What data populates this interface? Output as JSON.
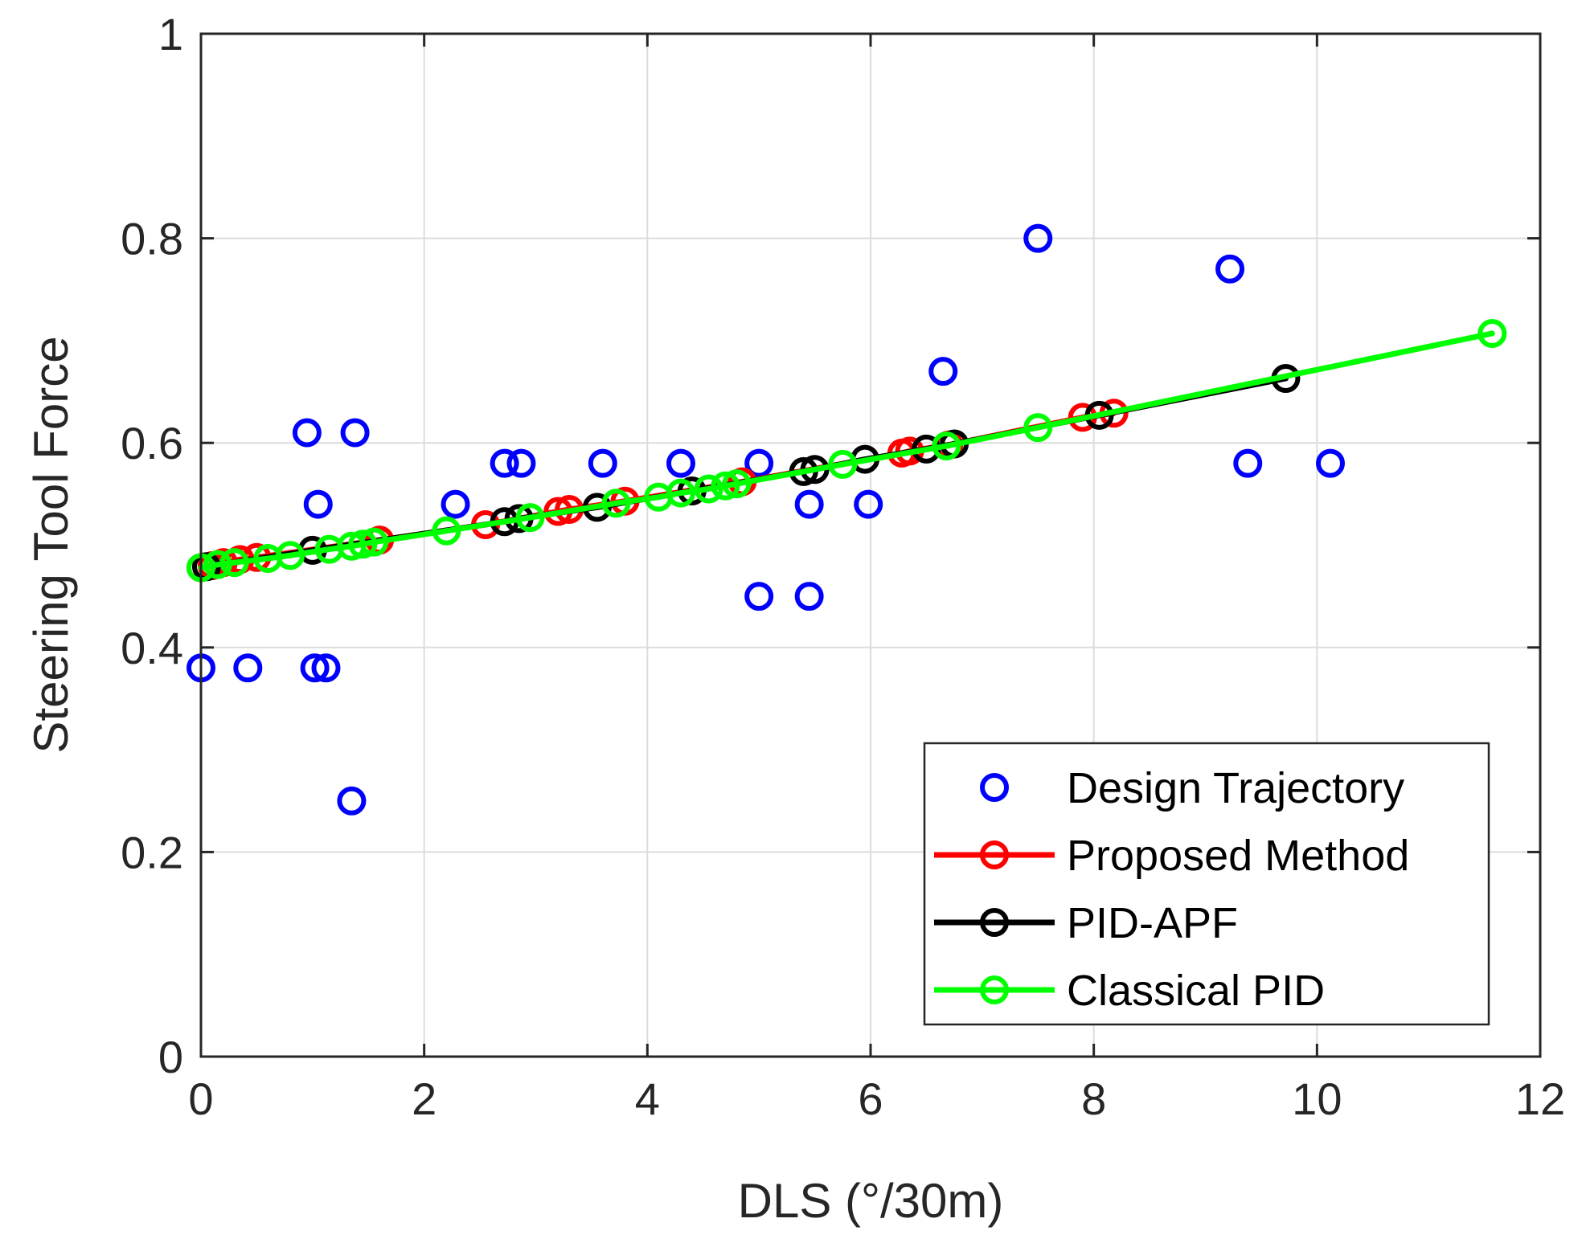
{
  "chart_data": {
    "type": "scatter",
    "title": "",
    "xlabel": "DLS (°/30m)",
    "ylabel": "Steering Tool Force",
    "xlim": [
      0,
      12
    ],
    "ylim": [
      0,
      1
    ],
    "xticks": [
      0,
      2,
      4,
      6,
      8,
      10,
      12
    ],
    "yticks": [
      0,
      0.2,
      0.4,
      0.6,
      0.8,
      1
    ],
    "xtick_labels": [
      "0",
      "2",
      "4",
      "6",
      "8",
      "10",
      "12"
    ],
    "ytick_labels": [
      "0",
      "0.2",
      "0.4",
      "0.6",
      "0.8",
      "1"
    ],
    "grid": true,
    "legend_position": "bottom-right",
    "series": [
      {
        "name": "Design Trajectory",
        "mode": "markers",
        "color": "#0000ff",
        "x": [
          0.0,
          0.42,
          0.95,
          1.05,
          1.38,
          1.02,
          1.12,
          1.35,
          2.28,
          2.72,
          2.87,
          3.6,
          4.3,
          5.0,
          5.45,
          5.98,
          5.0,
          5.45,
          6.65,
          7.5,
          9.22,
          9.38,
          10.12
        ],
        "y": [
          0.38,
          0.38,
          0.61,
          0.54,
          0.61,
          0.38,
          0.38,
          0.25,
          0.54,
          0.58,
          0.58,
          0.58,
          0.58,
          0.58,
          0.54,
          0.54,
          0.45,
          0.45,
          0.67,
          0.8,
          0.77,
          0.58,
          0.58
        ]
      },
      {
        "name": "Proposed Method",
        "mode": "lines+markers",
        "color": "#ff0000",
        "x": [
          0.0,
          0.1,
          0.2,
          0.35,
          0.5,
          1.6,
          2.55,
          3.2,
          3.3,
          3.8,
          4.85,
          6.28,
          6.35,
          6.7,
          7.9,
          8.18
        ],
        "y": [
          0.478,
          0.48,
          0.483,
          0.486,
          0.488,
          0.505,
          0.52,
          0.533,
          0.535,
          0.543,
          0.562,
          0.59,
          0.592,
          0.598,
          0.625,
          0.629
        ]
      },
      {
        "name": "PID-APF",
        "mode": "lines+markers",
        "color": "#000000",
        "x": [
          0.05,
          1.0,
          2.72,
          2.85,
          3.55,
          4.4,
          5.4,
          5.5,
          5.95,
          6.5,
          6.75,
          8.05,
          9.72
        ],
        "y": [
          0.479,
          0.495,
          0.523,
          0.526,
          0.537,
          0.553,
          0.572,
          0.574,
          0.584,
          0.594,
          0.599,
          0.627,
          0.663
        ]
      },
      {
        "name": "Classical PID",
        "mode": "lines+markers",
        "color": "#00ff00",
        "x": [
          0.0,
          0.15,
          0.3,
          0.6,
          0.8,
          1.15,
          1.35,
          1.45,
          1.55,
          2.2,
          2.95,
          3.72,
          4.1,
          4.3,
          4.55,
          4.7,
          4.8,
          5.75,
          6.68,
          7.5,
          11.57
        ],
        "y": [
          0.478,
          0.481,
          0.483,
          0.487,
          0.49,
          0.496,
          0.499,
          0.501,
          0.503,
          0.514,
          0.527,
          0.541,
          0.547,
          0.551,
          0.555,
          0.558,
          0.56,
          0.579,
          0.597,
          0.615,
          0.707
        ]
      }
    ]
  }
}
